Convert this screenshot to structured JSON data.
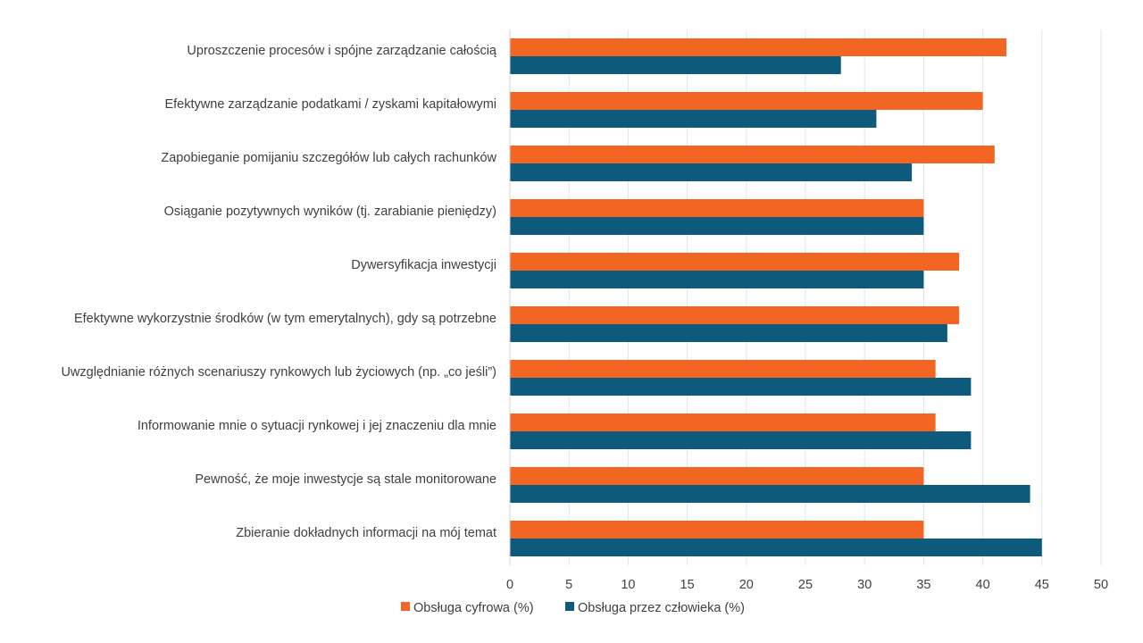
{
  "chart_data": {
    "type": "bar",
    "orientation": "horizontal",
    "categories": [
      "Uproszczenie procesów i spójne zarządzanie całością",
      "Efektywne zarządzanie podatkami / zyskami kapitałowymi",
      "Zapobieganie pomijaniu szczegółów lub całych rachunków",
      "Osiąganie pozytywnych wyników (tj. zarabianie pieniędzy)",
      "Dywersyfikacja inwestycji",
      "Efektywne wykorzystnie środków (w tym emerytalnych), gdy są potrzebne",
      "Uwzględnianie różnych scenariuszy rynkowych lub życiowych (np. „co jeśli”)",
      "Informowanie mnie o sytuacji rynkowej i jej znaczeniu dla mnie",
      "Pewność, że moje inwestycje są stale monitorowane",
      "Zbieranie dokładnych informacji na mój temat"
    ],
    "series": [
      {
        "name": "Obsługa cyfrowa (%)",
        "color": "#f26522",
        "values": [
          42,
          40,
          41,
          35,
          38,
          38,
          36,
          36,
          35,
          35
        ]
      },
      {
        "name": "Obsługa przez człowieka (%)",
        "color": "#0e5a7d",
        "values": [
          28,
          31,
          34,
          35,
          35,
          37,
          39,
          39,
          44,
          45
        ]
      }
    ],
    "xlim": [
      0,
      50
    ],
    "xticks": [
      0,
      5,
      10,
      15,
      20,
      25,
      30,
      35,
      40,
      45,
      50
    ],
    "grid": true,
    "gridline_color": "#dbe9e9",
    "legend_position": "bottom"
  }
}
